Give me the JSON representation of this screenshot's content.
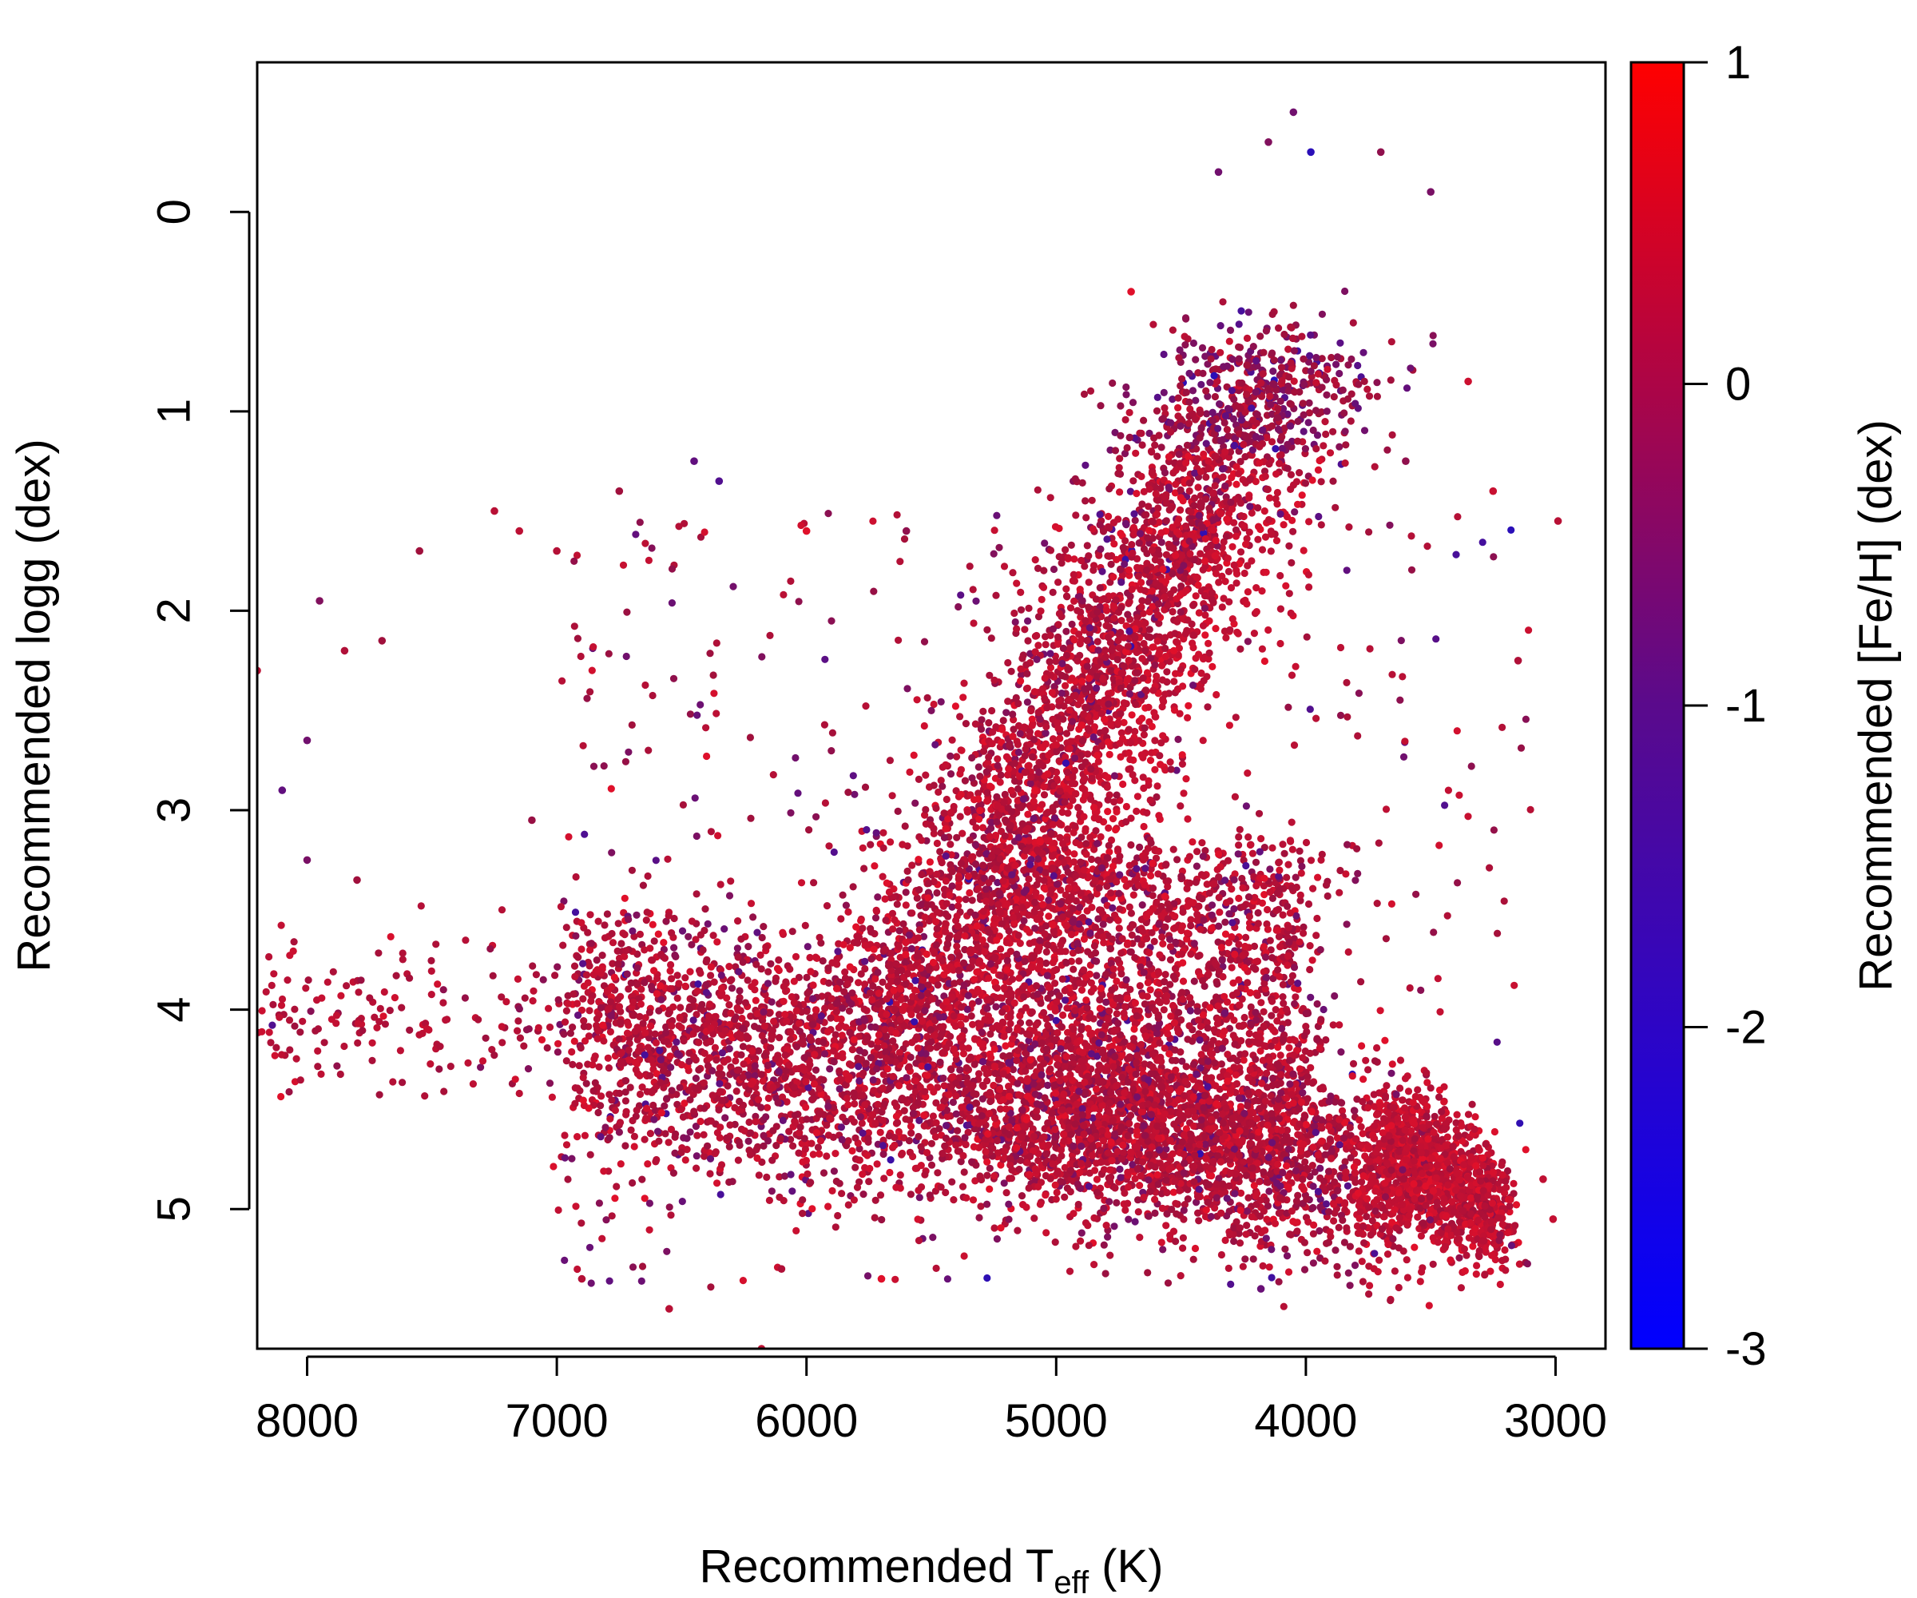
{
  "chart_data": {
    "type": "scatter",
    "title": "",
    "xlabel": {
      "main": "Recommended T",
      "subscript": "eff",
      "suffix": " (K)"
    },
    "ylabel": "Recommended logg (dex)",
    "colorbar_label": "Recommended [Fe/H] (dex)",
    "xlim": [
      8200,
      2800
    ],
    "ylim": [
      5.7,
      -0.75
    ],
    "x_reversed": true,
    "y_reversed": true,
    "x_ticks": [
      8000,
      7000,
      6000,
      5000,
      4000,
      3000
    ],
    "x_tick_labels": [
      "8000",
      "7000",
      "6000",
      "5000",
      "4000",
      "3000"
    ],
    "y_ticks": [
      0,
      1,
      2,
      3,
      4,
      5
    ],
    "y_tick_labels": [
      "0",
      "1",
      "2",
      "3",
      "4",
      "5"
    ],
    "colorbar": {
      "range": [
        -3,
        1
      ],
      "ticks": [
        1,
        0,
        -1,
        -2,
        -3
      ],
      "tick_labels": [
        "1",
        "0",
        "-1",
        "-2",
        "-3"
      ],
      "low_color": "#0000ff",
      "high_color": "#ff0000"
    },
    "grid": false,
    "legend": "none",
    "point_colors": {
      "metal_poor": "#2a0fb8",
      "solar": "#a0103c",
      "metal_rich": "#e0102a"
    },
    "series": [
      {
        "points": [
          {
            "x": 4050,
            "y": -0.5,
            "z": -1.6
          },
          {
            "x": 4150,
            "y": -0.35,
            "z": -1.4
          },
          {
            "x": 3980,
            "y": -0.3,
            "z": -2.6
          },
          {
            "x": 3700,
            "y": -0.3,
            "z": -1.2
          },
          {
            "x": 3500,
            "y": -0.1,
            "z": -1.5
          },
          {
            "x": 4350,
            "y": -0.2,
            "z": -1.6
          },
          {
            "x": 4700,
            "y": 0.4,
            "z": 0.8
          },
          {
            "x": 3350,
            "y": 0.85,
            "z": 0.1
          },
          {
            "x": 7250,
            "y": 1.5,
            "z": -0.4
          },
          {
            "x": 7150,
            "y": 1.6,
            "z": -0.3
          },
          {
            "x": 7000,
            "y": 1.7,
            "z": -0.5
          },
          {
            "x": 6750,
            "y": 1.4,
            "z": -1.0
          },
          {
            "x": 6450,
            "y": 1.25,
            "z": -1.8
          },
          {
            "x": 6350,
            "y": 1.35,
            "z": -2.0
          },
          {
            "x": 6000,
            "y": 1.6,
            "z": 0.9
          },
          {
            "x": 5600,
            "y": 1.6,
            "z": -1.2
          },
          {
            "x": 7550,
            "y": 1.7,
            "z": -1.0
          },
          {
            "x": 7950,
            "y": 1.95,
            "z": -1.4
          },
          {
            "x": 7850,
            "y": 2.2,
            "z": -0.6
          },
          {
            "x": 7700,
            "y": 2.15,
            "z": -1.0
          },
          {
            "x": 8000,
            "y": 2.65,
            "z": -1.6
          },
          {
            "x": 8100,
            "y": 2.9,
            "z": -1.8
          },
          {
            "x": 8000,
            "y": 3.25,
            "z": -1.5
          },
          {
            "x": 8200,
            "y": 2.3,
            "z": -0.3
          },
          {
            "x": 7100,
            "y": 3.05,
            "z": -1.1
          },
          {
            "x": 7800,
            "y": 3.35,
            "z": -1.0
          },
          {
            "x": 3150,
            "y": 2.25,
            "z": -0.6
          },
          {
            "x": 2990,
            "y": 1.55,
            "z": -0.4
          },
          {
            "x": 3250,
            "y": 1.4,
            "z": 0.0
          },
          {
            "x": 3600,
            "y": 1.25,
            "z": -1.2
          },
          {
            "x": 3050,
            "y": 4.85,
            "z": -0.2
          },
          {
            "x": 3010,
            "y": 5.05,
            "z": -0.1
          },
          {
            "x": 4180,
            "y": 5.4,
            "z": -1.7
          },
          {
            "x": 6180,
            "y": 5.7,
            "z": -0.2
          },
          {
            "x": 6550,
            "y": 5.5,
            "z": -0.4
          },
          {
            "x": 6100,
            "y": 5.3,
            "z": -0.6
          },
          {
            "x": 6900,
            "y": 5.35,
            "z": -0.5
          },
          {
            "x": 5700,
            "y": 5.35,
            "z": 0.7
          }
        ]
      }
    ]
  }
}
